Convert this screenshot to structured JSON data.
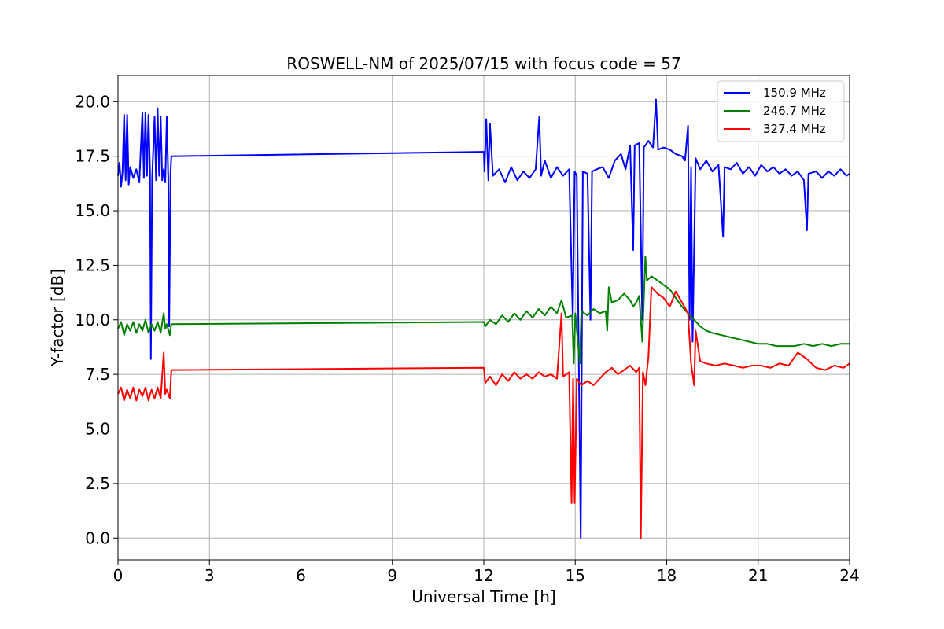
{
  "chart_data": {
    "type": "line",
    "title": "ROSWELL-NM of 2025/07/15 with focus code = 57",
    "xlabel": "Universal Time [h]",
    "ylabel": "Y-factor [dB]",
    "xlim": [
      0,
      24
    ],
    "ylim": [
      -1.0,
      21.2
    ],
    "xticks": [
      0,
      3,
      6,
      9,
      12,
      15,
      18,
      21,
      24
    ],
    "xtick_labels": [
      "0",
      "3",
      "6",
      "9",
      "12",
      "15",
      "18",
      "21",
      "24"
    ],
    "yticks": [
      0.0,
      2.5,
      5.0,
      7.5,
      10.0,
      12.5,
      15.0,
      17.5,
      20.0
    ],
    "ytick_labels": [
      "0.0",
      "2.5",
      "5.0",
      "7.5",
      "10.0",
      "12.5",
      "15.0",
      "17.5",
      "20.0"
    ],
    "grid": true,
    "legend_position": "top-right",
    "series": [
      {
        "name": "150.9 MHz",
        "color": "#0000ff",
        "points": [
          [
            0.0,
            16.6
          ],
          [
            0.05,
            17.2
          ],
          [
            0.1,
            16.1
          ],
          [
            0.15,
            16.8
          ],
          [
            0.2,
            19.4
          ],
          [
            0.25,
            16.4
          ],
          [
            0.3,
            19.4
          ],
          [
            0.35,
            16.2
          ],
          [
            0.4,
            17.0
          ],
          [
            0.5,
            16.5
          ],
          [
            0.6,
            16.9
          ],
          [
            0.7,
            16.3
          ],
          [
            0.8,
            19.5
          ],
          [
            0.85,
            16.5
          ],
          [
            0.9,
            19.5
          ],
          [
            0.95,
            16.6
          ],
          [
            1.0,
            19.4
          ],
          [
            1.05,
            16.8
          ],
          [
            1.08,
            8.2
          ],
          [
            1.12,
            16.5
          ],
          [
            1.2,
            19.3
          ],
          [
            1.25,
            16.4
          ],
          [
            1.3,
            19.7
          ],
          [
            1.35,
            16.6
          ],
          [
            1.4,
            19.3
          ],
          [
            1.45,
            16.4
          ],
          [
            1.5,
            16.9
          ],
          [
            1.55,
            16.3
          ],
          [
            1.6,
            19.3
          ],
          [
            1.65,
            16.5
          ],
          [
            1.68,
            9.7
          ],
          [
            1.72,
            16.6
          ],
          [
            1.75,
            17.5
          ],
          [
            12.0,
            17.7
          ],
          [
            12.02,
            16.8
          ],
          [
            12.08,
            19.2
          ],
          [
            12.15,
            16.4
          ],
          [
            12.2,
            19.0
          ],
          [
            12.3,
            16.6
          ],
          [
            12.5,
            16.9
          ],
          [
            12.7,
            16.3
          ],
          [
            12.9,
            17.0
          ],
          [
            13.1,
            16.4
          ],
          [
            13.3,
            16.8
          ],
          [
            13.5,
            16.5
          ],
          [
            13.7,
            16.9
          ],
          [
            13.82,
            19.3
          ],
          [
            13.88,
            16.6
          ],
          [
            14.0,
            17.3
          ],
          [
            14.2,
            16.5
          ],
          [
            14.4,
            17.0
          ],
          [
            14.6,
            16.6
          ],
          [
            14.8,
            16.9
          ],
          [
            14.92,
            10.0
          ],
          [
            14.98,
            16.8
          ],
          [
            15.05,
            16.6
          ],
          [
            15.18,
            0.0
          ],
          [
            15.25,
            16.8
          ],
          [
            15.4,
            16.7
          ],
          [
            15.5,
            10.0
          ],
          [
            15.55,
            16.8
          ],
          [
            15.7,
            16.9
          ],
          [
            15.9,
            17.0
          ],
          [
            16.1,
            16.5
          ],
          [
            16.3,
            17.3
          ],
          [
            16.5,
            17.6
          ],
          [
            16.65,
            16.9
          ],
          [
            16.8,
            18.0
          ],
          [
            16.9,
            13.2
          ],
          [
            16.95,
            18.0
          ],
          [
            17.1,
            18.1
          ],
          [
            17.2,
            10.0
          ],
          [
            17.25,
            17.9
          ],
          [
            17.4,
            18.2
          ],
          [
            17.55,
            17.9
          ],
          [
            17.65,
            20.1
          ],
          [
            17.72,
            17.8
          ],
          [
            17.9,
            17.9
          ],
          [
            18.1,
            17.8
          ],
          [
            18.3,
            17.6
          ],
          [
            18.5,
            17.5
          ],
          [
            18.6,
            17.3
          ],
          [
            18.7,
            18.9
          ],
          [
            18.75,
            10.0
          ],
          [
            18.8,
            17.0
          ],
          [
            18.85,
            9.0
          ],
          [
            18.95,
            17.4
          ],
          [
            19.1,
            16.9
          ],
          [
            19.3,
            17.3
          ],
          [
            19.5,
            16.8
          ],
          [
            19.7,
            17.1
          ],
          [
            19.85,
            13.8
          ],
          [
            19.9,
            17.0
          ],
          [
            20.1,
            16.9
          ],
          [
            20.3,
            17.2
          ],
          [
            20.5,
            16.7
          ],
          [
            20.7,
            17.0
          ],
          [
            20.9,
            16.6
          ],
          [
            21.1,
            17.1
          ],
          [
            21.3,
            16.8
          ],
          [
            21.5,
            17.0
          ],
          [
            21.7,
            16.7
          ],
          [
            21.9,
            16.9
          ],
          [
            22.1,
            16.6
          ],
          [
            22.3,
            16.8
          ],
          [
            22.5,
            16.4
          ],
          [
            22.6,
            14.1
          ],
          [
            22.65,
            16.7
          ],
          [
            22.9,
            16.8
          ],
          [
            23.1,
            16.5
          ],
          [
            23.3,
            16.8
          ],
          [
            23.5,
            16.6
          ],
          [
            23.7,
            16.9
          ],
          [
            23.9,
            16.6
          ],
          [
            24.0,
            16.7
          ]
        ]
      },
      {
        "name": "246.7 MHz",
        "color": "#008000",
        "points": [
          [
            0.0,
            9.6
          ],
          [
            0.1,
            9.9
          ],
          [
            0.2,
            9.3
          ],
          [
            0.3,
            9.8
          ],
          [
            0.4,
            9.5
          ],
          [
            0.5,
            9.9
          ],
          [
            0.6,
            9.4
          ],
          [
            0.7,
            9.8
          ],
          [
            0.8,
            9.5
          ],
          [
            0.9,
            10.0
          ],
          [
            1.0,
            9.4
          ],
          [
            1.1,
            9.8
          ],
          [
            1.2,
            9.5
          ],
          [
            1.3,
            9.9
          ],
          [
            1.4,
            9.4
          ],
          [
            1.5,
            10.3
          ],
          [
            1.55,
            9.6
          ],
          [
            1.6,
            9.8
          ],
          [
            1.7,
            9.3
          ],
          [
            1.75,
            9.8
          ],
          [
            12.0,
            9.9
          ],
          [
            12.05,
            9.7
          ],
          [
            12.2,
            10.0
          ],
          [
            12.4,
            9.8
          ],
          [
            12.6,
            10.2
          ],
          [
            12.8,
            9.9
          ],
          [
            13.0,
            10.3
          ],
          [
            13.2,
            10.0
          ],
          [
            13.4,
            10.4
          ],
          [
            13.6,
            10.1
          ],
          [
            13.8,
            10.5
          ],
          [
            14.0,
            10.2
          ],
          [
            14.2,
            10.6
          ],
          [
            14.4,
            10.3
          ],
          [
            14.55,
            10.9
          ],
          [
            14.7,
            10.1
          ],
          [
            14.9,
            10.2
          ],
          [
            14.95,
            8.0
          ],
          [
            15.0,
            10.3
          ],
          [
            15.15,
            8.0
          ],
          [
            15.2,
            10.4
          ],
          [
            15.4,
            10.2
          ],
          [
            15.6,
            10.5
          ],
          [
            15.8,
            10.3
          ],
          [
            16.0,
            10.4
          ],
          [
            16.05,
            9.5
          ],
          [
            16.1,
            11.5
          ],
          [
            16.2,
            10.8
          ],
          [
            16.4,
            10.9
          ],
          [
            16.6,
            11.2
          ],
          [
            16.8,
            10.9
          ],
          [
            16.9,
            10.6
          ],
          [
            17.0,
            10.8
          ],
          [
            17.1,
            11.1
          ],
          [
            17.2,
            9.0
          ],
          [
            17.3,
            12.9
          ],
          [
            17.35,
            11.8
          ],
          [
            17.5,
            12.0
          ],
          [
            17.7,
            11.8
          ],
          [
            17.9,
            11.6
          ],
          [
            18.1,
            11.4
          ],
          [
            18.3,
            11.0
          ],
          [
            18.5,
            10.6
          ],
          [
            18.7,
            10.3
          ],
          [
            18.9,
            10.0
          ],
          [
            19.1,
            9.7
          ],
          [
            19.3,
            9.5
          ],
          [
            19.5,
            9.4
          ],
          [
            19.8,
            9.3
          ],
          [
            20.1,
            9.2
          ],
          [
            20.4,
            9.1
          ],
          [
            20.7,
            9.0
          ],
          [
            21.0,
            8.9
          ],
          [
            21.3,
            8.9
          ],
          [
            21.6,
            8.8
          ],
          [
            21.9,
            8.8
          ],
          [
            22.2,
            8.8
          ],
          [
            22.5,
            8.9
          ],
          [
            22.8,
            8.8
          ],
          [
            23.1,
            8.9
          ],
          [
            23.4,
            8.8
          ],
          [
            23.7,
            8.9
          ],
          [
            24.0,
            8.9
          ]
        ]
      },
      {
        "name": "327.4 MHz",
        "color": "#ff0000",
        "points": [
          [
            0.0,
            6.6
          ],
          [
            0.1,
            6.9
          ],
          [
            0.2,
            6.3
          ],
          [
            0.3,
            6.8
          ],
          [
            0.4,
            6.4
          ],
          [
            0.5,
            6.9
          ],
          [
            0.6,
            6.3
          ],
          [
            0.7,
            6.8
          ],
          [
            0.8,
            6.5
          ],
          [
            0.9,
            6.9
          ],
          [
            1.0,
            6.3
          ],
          [
            1.1,
            6.8
          ],
          [
            1.2,
            6.4
          ],
          [
            1.3,
            6.9
          ],
          [
            1.4,
            6.4
          ],
          [
            1.5,
            8.5
          ],
          [
            1.55,
            6.6
          ],
          [
            1.6,
            6.8
          ],
          [
            1.7,
            6.4
          ],
          [
            1.75,
            7.7
          ],
          [
            12.0,
            7.8
          ],
          [
            12.05,
            7.1
          ],
          [
            12.2,
            7.4
          ],
          [
            12.4,
            7.0
          ],
          [
            12.6,
            7.5
          ],
          [
            12.8,
            7.2
          ],
          [
            13.0,
            7.6
          ],
          [
            13.2,
            7.3
          ],
          [
            13.4,
            7.5
          ],
          [
            13.6,
            7.3
          ],
          [
            13.8,
            7.6
          ],
          [
            14.0,
            7.4
          ],
          [
            14.2,
            7.5
          ],
          [
            14.4,
            7.3
          ],
          [
            14.55,
            10.3
          ],
          [
            14.6,
            7.4
          ],
          [
            14.8,
            7.6
          ],
          [
            14.88,
            1.6
          ],
          [
            14.93,
            7.3
          ],
          [
            14.98,
            1.6
          ],
          [
            15.05,
            7.3
          ],
          [
            15.2,
            7.0
          ],
          [
            15.4,
            7.2
          ],
          [
            15.6,
            7.0
          ],
          [
            15.8,
            7.3
          ],
          [
            16.0,
            7.6
          ],
          [
            16.2,
            7.8
          ],
          [
            16.4,
            7.5
          ],
          [
            16.6,
            7.7
          ],
          [
            16.8,
            7.9
          ],
          [
            17.0,
            7.6
          ],
          [
            17.1,
            7.8
          ],
          [
            17.15,
            0.0
          ],
          [
            17.22,
            7.6
          ],
          [
            17.3,
            7.0
          ],
          [
            17.4,
            8.3
          ],
          [
            17.5,
            11.5
          ],
          [
            17.7,
            11.2
          ],
          [
            17.9,
            11.0
          ],
          [
            18.1,
            10.6
          ],
          [
            18.3,
            11.3
          ],
          [
            18.5,
            10.8
          ],
          [
            18.7,
            10.3
          ],
          [
            18.8,
            8.0
          ],
          [
            18.9,
            7.0
          ],
          [
            18.95,
            9.5
          ],
          [
            19.1,
            8.1
          ],
          [
            19.3,
            8.0
          ],
          [
            19.6,
            7.9
          ],
          [
            19.9,
            8.0
          ],
          [
            20.2,
            7.9
          ],
          [
            20.5,
            7.8
          ],
          [
            20.8,
            7.9
          ],
          [
            21.1,
            7.9
          ],
          [
            21.4,
            7.8
          ],
          [
            21.7,
            8.0
          ],
          [
            22.0,
            7.9
          ],
          [
            22.3,
            8.5
          ],
          [
            22.6,
            8.2
          ],
          [
            22.9,
            7.8
          ],
          [
            23.2,
            7.7
          ],
          [
            23.5,
            7.9
          ],
          [
            23.8,
            7.8
          ],
          [
            24.0,
            8.0
          ]
        ]
      }
    ]
  }
}
